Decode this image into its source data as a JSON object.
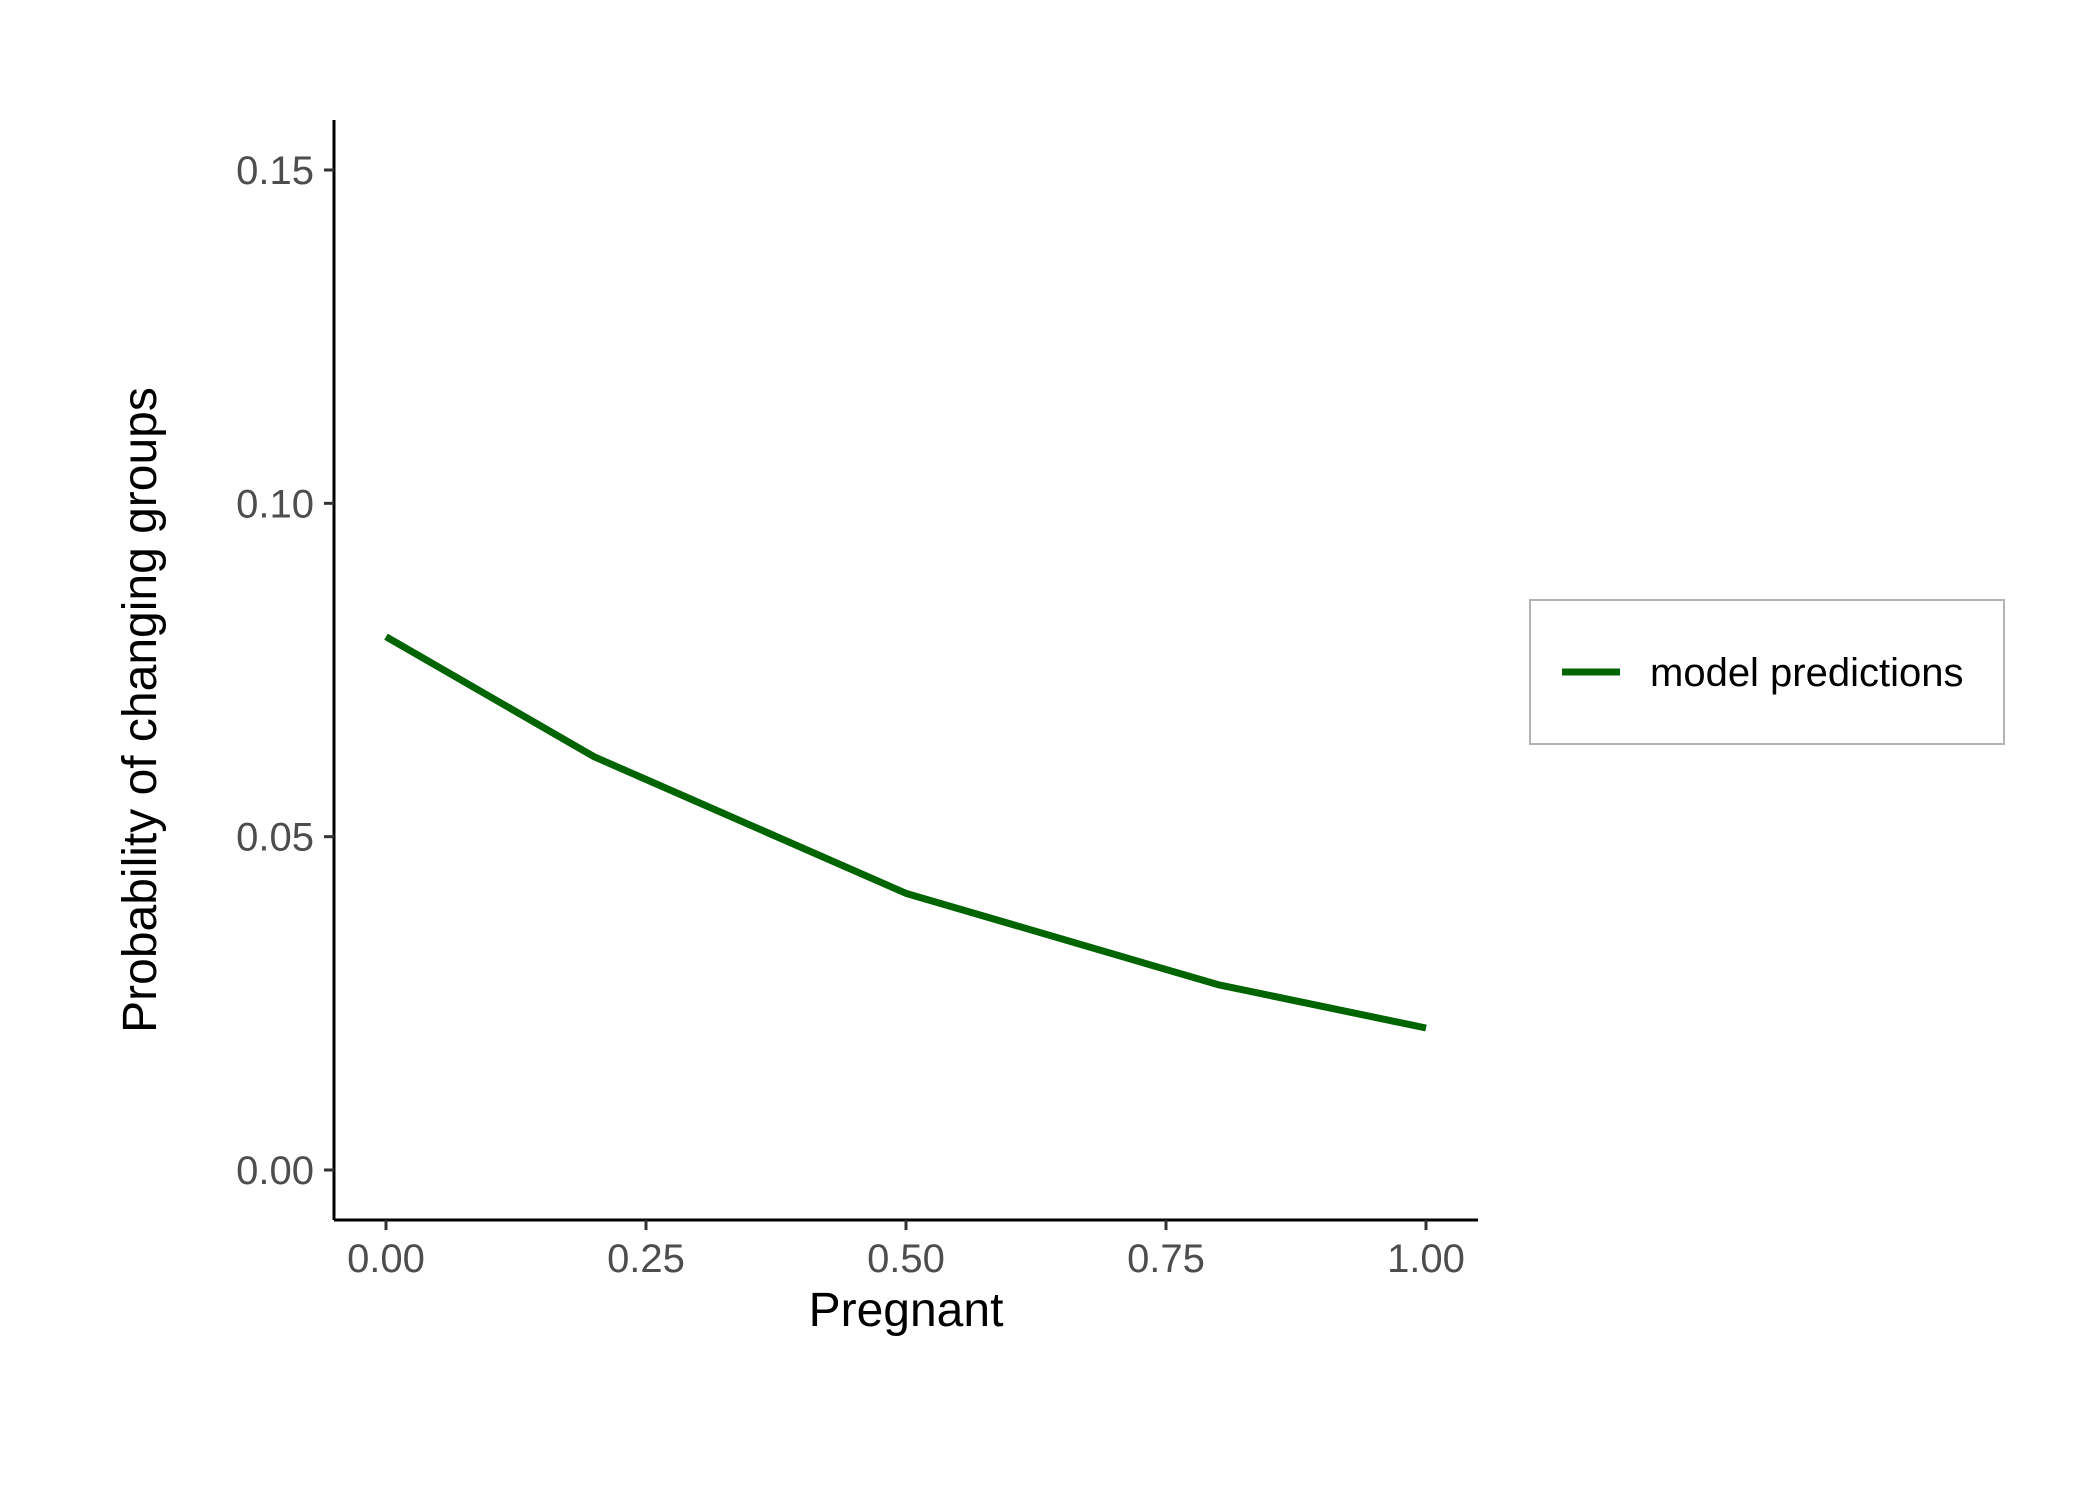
{
  "chart_data": {
    "type": "line",
    "xlabel": "Pregnant",
    "ylabel": "Probability of changing groups",
    "xlim": [
      -0.05,
      1.05
    ],
    "ylim": [
      -0.0075,
      0.1575
    ],
    "x_ticks": [
      0.0,
      0.25,
      0.5,
      0.75,
      1.0
    ],
    "x_tick_labels": [
      "0.00",
      "0.25",
      "0.50",
      "0.75",
      "1.00"
    ],
    "y_ticks": [
      0.0,
      0.05,
      0.1,
      0.15
    ],
    "y_tick_labels": [
      "0.00",
      "0.05",
      "0.10",
      "0.15"
    ],
    "grid": false,
    "legend_position": "right",
    "series": [
      {
        "name": "model predictions",
        "color": "#006400",
        "x": [
          0.0,
          0.2,
          0.5,
          0.8,
          1.0
        ],
        "y": [
          0.08,
          0.062,
          0.0415,
          0.0278,
          0.0213
        ]
      }
    ]
  }
}
